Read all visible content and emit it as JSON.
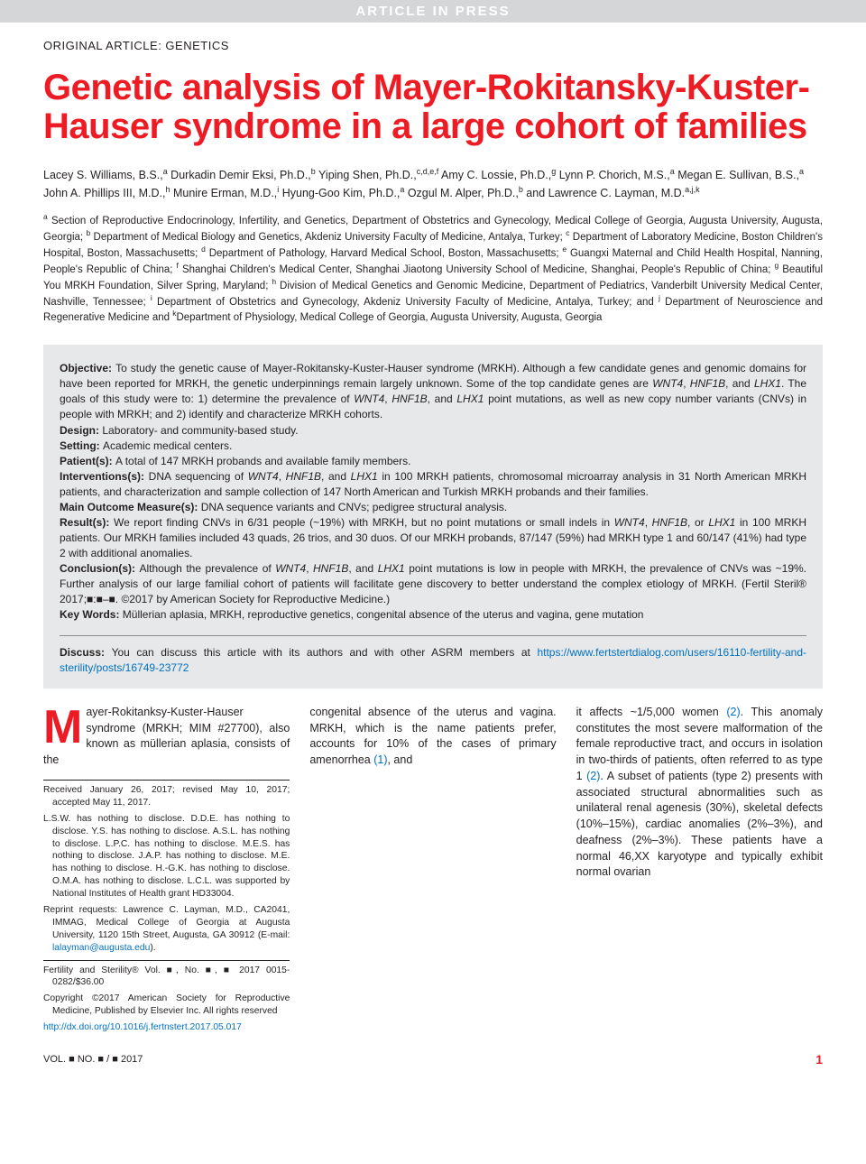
{
  "banner": "ARTICLE IN PRESS",
  "articleType": "ORIGINAL ARTICLE: GENETICS",
  "title": "Genetic analysis of Mayer-Rokitansky-Kuster-Hauser syndrome in a large cohort of families",
  "authorsHtml": "Lacey S. Williams, B.S.,<sup>a</sup> Durkadin Demir Eksi, Ph.D.,<sup>b</sup> Yiping Shen, Ph.D.,<sup>c,d,e,f</sup> Amy C. Lossie, Ph.D.,<sup>g</sup> Lynn P. Chorich, M.S.,<sup>a</sup> Megan E. Sullivan, B.S.,<sup>a</sup> John A. Phillips III, M.D.,<sup>h</sup> Munire Erman, M.D.,<sup>i</sup> Hyung-Goo Kim, Ph.D.,<sup>a</sup> Ozgul M. Alper, Ph.D.,<sup>b</sup> and Lawrence C. Layman, M.D.<sup>a,j,k</sup>",
  "affiliationsHtml": "<sup>a</sup> Section of Reproductive Endocrinology, Infertility, and Genetics, Department of Obstetrics and Gynecology, Medical College of Georgia, Augusta University, Augusta, Georgia; <sup>b</sup> Department of Medical Biology and Genetics, Akdeniz University Faculty of Medicine, Antalya, Turkey; <sup>c</sup> Department of Laboratory Medicine, Boston Children's Hospital, Boston, Massachusetts; <sup>d</sup> Department of Pathology, Harvard Medical School, Boston, Massachusetts; <sup>e</sup> Guangxi Maternal and Child Health Hospital, Nanning, People's Republic of China; <sup>f</sup> Shanghai Children's Medical Center, Shanghai Jiaotong University School of Medicine, Shanghai, People's Republic of China; <sup>g</sup> Beautiful You MRKH Foundation, Silver Spring, Maryland; <sup>h</sup> Division of Medical Genetics and Genomic Medicine, Department of Pediatrics, Vanderbilt University Medical Center, Nashville, Tennessee; <sup>i</sup> Department of Obstetrics and Gynecology, Akdeniz University Faculty of Medicine, Antalya, Turkey; and <sup>j</sup> Department of Neuroscience and Regenerative Medicine and <sup>k</sup>Department of Physiology, Medical College of Georgia, Augusta University, Augusta, Georgia",
  "abstract": {
    "objective": "To study the genetic cause of Mayer-Rokitansky-Kuster-Hauser syndrome (MRKH). Although a few candidate genes and genomic domains for have been reported for MRKH, the genetic underpinnings remain largely unknown. Some of the top candidate genes are <em>WNT4</em>, <em>HNF1B</em>, and <em>LHX1</em>. The goals of this study were to: 1) determine the prevalence of <em>WNT4</em>, <em>HNF1B</em>, and <em>LHX1</em> point mutations, as well as new copy number variants (CNVs) in people with MRKH; and 2) identify and characterize MRKH cohorts.",
    "design": "Laboratory- and community-based study.",
    "setting": "Academic medical centers.",
    "patients": "A total of 147 MRKH probands and available family members.",
    "interventions": "DNA sequencing of <em>WNT4</em>, <em>HNF1B</em>, and <em>LHX1</em> in 100 MRKH patients, chromosomal microarray analysis in 31 North American MRKH patients, and characterization and sample collection of 147 North American and Turkish MRKH probands and their families.",
    "outcome": "DNA sequence variants and CNVs; pedigree structural analysis.",
    "results": "We report finding CNVs in 6/31 people (~19%) with MRKH, but no point mutations or small indels in <em>WNT4</em>, <em>HNF1B</em>, or <em>LHX1</em> in 100 MRKH patients. Our MRKH families included 43 quads, 26 trios, and 30 duos. Of our MRKH probands, 87/147 (59%) had MRKH type 1 and 60/147 (41%) had type 2 with additional anomalies.",
    "conclusions": "Although the prevalence of <em>WNT4</em>, <em>HNF1B</em>, and <em>LHX1</em> point mutations is low in people with MRKH, the prevalence of CNVs was ~19%. Further analysis of our large familial cohort of patients will facilitate gene discovery to better understand the complex etiology of MRKH. (Fertil Steril® 2017;■:■–■. ©2017 by American Society for Reproductive Medicine.)",
    "keywords": "Müllerian aplasia, MRKH, reproductive genetics, congenital absence of the uterus and vagina, gene mutation",
    "discussText": "You can discuss this article with its authors and with other ASRM members at ",
    "discussLink": "https://www.fertstertdialog.com/users/16110-fertility-and-sterility/posts/16749-23772"
  },
  "body": {
    "col1": "ayer-Rokitanksy-Kuster-Hauser syndrome (MRKH; MIM #27700), also known as müllerian aplasia, consists of the",
    "col2": "congenital absence of the uterus and vagina. MRKH, which is the name patients prefer, accounts for 10% of the cases of primary amenorrhea ",
    "col2b": ", and",
    "col3a": "it affects ~1/5,000 women ",
    "col3b": ". This anomaly constitutes the most severe malformation of the female reproductive tract, and occurs in isolation in two-thirds of patients, often referred to as type 1 ",
    "col3c": ". A subset of patients (type 2) presents with associated structural abnormalities such as unilateral renal agenesis (30%), skeletal defects (10%–15%), cardiac anomalies (2%–3%), and deafness (2%–3%). These patients have a normal 46,XX karyotype and typically exhibit normal ovarian"
  },
  "footnotes": {
    "received": "Received January 26, 2017; revised May 10, 2017; accepted May 11, 2017.",
    "disclosures": "L.S.W. has nothing to disclose. D.D.E. has nothing to disclose. Y.S. has nothing to disclose. A.S.L. has nothing to disclose. L.P.C. has nothing to disclose. M.E.S. has nothing to disclose. J.A.P. has nothing to disclose. M.E. has nothing to disclose. H.-G.K. has nothing to disclose. O.M.A. has nothing to disclose. L.C.L. was supported by National Institutes of Health grant HD33004.",
    "reprint": "Reprint requests: Lawrence C. Layman, M.D., CA2041, IMMAG, Medical College of Georgia at Augusta University, 1120 15th Street, Augusta, GA 30912 (E-mail: ",
    "reprintEmail": "lalayman@augusta.edu",
    "reprintEnd": ").",
    "journal": "Fertility and Sterility® Vol. ■, No. ■, ■ 2017 0015-0282/$36.00",
    "copyright": "Copyright ©2017 American Society for Reproductive Medicine, Published by Elsevier Inc. All rights reserved",
    "doi": "http://dx.doi.org/10.1016/j.fertnstert.2017.05.017"
  },
  "footer": {
    "left": "VOL. ■ NO. ■ / ■ 2017",
    "pageNum": "1"
  },
  "colors": {
    "accentRed": "#ed1c24",
    "linkBlue": "#0070c0",
    "greyBg": "#e7e8e9",
    "bannerBg": "#d5d6d8"
  }
}
